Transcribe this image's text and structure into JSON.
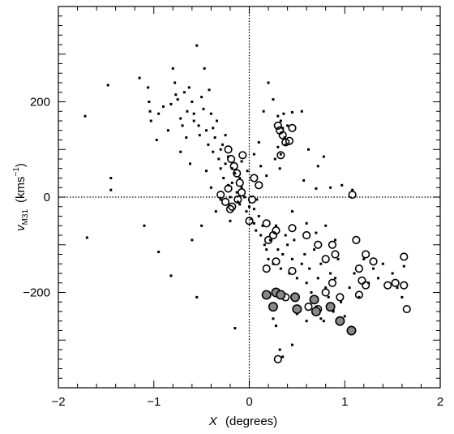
{
  "chart_data": {
    "type": "scatter",
    "xlabel": {
      "main": "X",
      "unit": "(degrees)"
    },
    "ylabel": {
      "main": "v",
      "sub": "M31",
      "unit_pre": "(kms",
      "unit_sup": "−1",
      "unit_post": ")"
    },
    "xlim": [
      -2,
      2
    ],
    "ylim": [
      -400,
      400
    ],
    "xticks": [
      -2,
      -1,
      0,
      1,
      2
    ],
    "xtick_labels": [
      "−2",
      "−1",
      "0",
      "1",
      "2"
    ],
    "yticks": [
      -200,
      0,
      200
    ],
    "ytick_labels": [
      "−200",
      "0",
      "200"
    ],
    "reference_lines": {
      "x": 0,
      "y": 0,
      "style": "dotted"
    },
    "series": [
      {
        "marker": "small-square",
        "points": [
          [
            -1.72,
            170
          ],
          [
            -1.48,
            235
          ],
          [
            -1.45,
            40
          ],
          [
            -1.45,
            15
          ],
          [
            -1.15,
            250
          ],
          [
            -1.06,
            230
          ],
          [
            -1.05,
            200
          ],
          [
            -1.04,
            180
          ],
          [
            -1.03,
            160
          ],
          [
            -0.97,
            120
          ],
          [
            -0.95,
            175
          ],
          [
            -0.9,
            190
          ],
          [
            -0.85,
            140
          ],
          [
            -0.82,
            195
          ],
          [
            -0.8,
            270
          ],
          [
            -0.78,
            240
          ],
          [
            -0.77,
            215
          ],
          [
            -0.75,
            205
          ],
          [
            -0.72,
            165
          ],
          [
            -0.7,
            150
          ],
          [
            -0.68,
            220
          ],
          [
            -0.66,
            125
          ],
          [
            -0.63,
            230
          ],
          [
            -0.6,
            200
          ],
          [
            -0.58,
            175
          ],
          [
            -0.55,
            318
          ],
          [
            -0.53,
            150
          ],
          [
            -0.5,
            210
          ],
          [
            -0.48,
            185
          ],
          [
            -0.47,
            270
          ],
          [
            -0.45,
            140
          ],
          [
            -0.42,
            225
          ],
          [
            -0.4,
            175
          ],
          [
            -0.38,
            95
          ],
          [
            -0.36,
            125
          ],
          [
            -0.34,
            160
          ],
          [
            -0.32,
            80
          ],
          [
            -0.3,
            60
          ],
          [
            -0.28,
            110
          ],
          [
            -0.27,
            40
          ],
          [
            -0.25,
            70
          ],
          [
            -0.22,
            25
          ],
          [
            -0.2,
            0
          ],
          [
            -0.18,
            30
          ],
          [
            -0.15,
            50
          ],
          [
            -0.13,
            10
          ],
          [
            -0.1,
            -15
          ],
          [
            -0.08,
            20
          ],
          [
            -0.05,
            0
          ],
          [
            -0.03,
            -30
          ],
          [
            0.0,
            -20
          ],
          [
            0.02,
            -45
          ],
          [
            0.05,
            -55
          ],
          [
            0.07,
            -70
          ],
          [
            0.1,
            -40
          ],
          [
            0.12,
            -80
          ],
          [
            0.14,
            -60
          ],
          [
            0.16,
            -100
          ],
          [
            0.18,
            -110
          ],
          [
            0.2,
            -130
          ],
          [
            0.22,
            -90
          ],
          [
            0.25,
            -140
          ],
          [
            0.28,
            -60
          ],
          [
            0.3,
            -110
          ],
          [
            0.33,
            -150
          ],
          [
            0.35,
            -120
          ],
          [
            0.38,
            -80
          ],
          [
            0.4,
            -100
          ],
          [
            0.42,
            -160
          ],
          [
            0.45,
            -130
          ],
          [
            0.47,
            -90
          ],
          [
            0.5,
            -170
          ],
          [
            0.55,
            -140
          ],
          [
            0.58,
            -120
          ],
          [
            0.6,
            -180
          ],
          [
            0.63,
            -150
          ],
          [
            0.65,
            -200
          ],
          [
            0.68,
            -110
          ],
          [
            0.7,
            -230
          ],
          [
            0.72,
            -170
          ],
          [
            0.75,
            -140
          ],
          [
            0.78,
            -260
          ],
          [
            0.8,
            -190
          ],
          [
            0.83,
            -210
          ],
          [
            0.85,
            -160
          ],
          [
            0.88,
            -240
          ],
          [
            0.9,
            -170
          ],
          [
            0.93,
            -130
          ],
          [
            0.96,
            -220
          ],
          [
            1.0,
            -250
          ],
          [
            1.05,
            -190
          ],
          [
            1.1,
            -160
          ],
          [
            1.15,
            -210
          ],
          [
            1.2,
            -130
          ],
          [
            1.25,
            -180
          ],
          [
            1.3,
            -150
          ],
          [
            1.35,
            -170
          ],
          [
            1.4,
            -140
          ],
          [
            1.5,
            -160
          ],
          [
            1.55,
            -190
          ],
          [
            1.6,
            -210
          ],
          [
            1.62,
            -145
          ],
          [
            0.3,
            170
          ],
          [
            0.33,
            160
          ],
          [
            0.35,
            145
          ],
          [
            0.37,
            125
          ],
          [
            0.3,
            105
          ],
          [
            0.33,
            90
          ],
          [
            0.36,
            175
          ],
          [
            0.38,
            110
          ],
          [
            0.4,
            150
          ],
          [
            0.45,
            178
          ],
          [
            0.55,
            180
          ],
          [
            0.32,
            60
          ],
          [
            0.27,
            80
          ],
          [
            0.62,
            100
          ],
          [
            0.72,
            65
          ],
          [
            0.78,
            85
          ],
          [
            0.57,
            35
          ],
          [
            0.7,
            18
          ],
          [
            0.85,
            20
          ],
          [
            0.97,
            25
          ],
          [
            1.08,
            15
          ],
          [
            0.45,
            -30
          ],
          [
            0.6,
            -55
          ],
          [
            0.7,
            -75
          ],
          [
            0.8,
            -60
          ],
          [
            0.9,
            -90
          ],
          [
            0.25,
            -255
          ],
          [
            0.28,
            -270
          ],
          [
            0.32,
            -320
          ],
          [
            0.35,
            -335
          ],
          [
            0.45,
            -310
          ],
          [
            0.5,
            -245
          ],
          [
            0.6,
            -260
          ],
          [
            0.75,
            -255
          ],
          [
            0.88,
            -235
          ],
          [
            -0.15,
            -275
          ],
          [
            -0.55,
            -210
          ],
          [
            -0.82,
            -165
          ],
          [
            -0.95,
            -115
          ],
          [
            -1.1,
            -60
          ],
          [
            -1.7,
            -85
          ],
          [
            -0.6,
            -90
          ],
          [
            -0.5,
            -60
          ],
          [
            -0.35,
            -30
          ],
          [
            -0.2,
            -50
          ],
          [
            0.15,
            180
          ],
          [
            0.2,
            240
          ],
          [
            0.25,
            205
          ],
          [
            0.1,
            115
          ],
          [
            0.05,
            90
          ],
          [
            0.12,
            65
          ],
          [
            0.18,
            45
          ],
          [
            -0.72,
            95
          ],
          [
            -0.62,
            70
          ],
          [
            -0.45,
            55
          ],
          [
            -0.4,
            20
          ],
          [
            -0.3,
            -5
          ],
          [
            -0.12,
            -10
          ],
          [
            0.05,
            -25
          ],
          [
            0.08,
            -5
          ],
          [
            -0.65,
            180
          ],
          [
            -0.58,
            160
          ],
          [
            -0.52,
            130
          ],
          [
            -0.43,
            110
          ],
          [
            -0.38,
            145
          ],
          [
            -0.3,
            100
          ],
          [
            -0.25,
            130
          ],
          [
            -0.22,
            85
          ],
          [
            -0.18,
            60
          ],
          [
            -0.1,
            40
          ],
          [
            -0.08,
            75
          ],
          [
            -0.02,
            55
          ]
        ]
      },
      {
        "marker": "open-circle",
        "points": [
          [
            -0.22,
            100
          ],
          [
            -0.19,
            80
          ],
          [
            -0.16,
            65
          ],
          [
            -0.13,
            50
          ],
          [
            -0.07,
            88
          ],
          [
            -0.3,
            5
          ],
          [
            -0.25,
            -10
          ],
          [
            -0.22,
            18
          ],
          [
            -0.18,
            -20
          ],
          [
            -0.12,
            -5
          ],
          [
            -0.1,
            30
          ],
          [
            -0.08,
            10
          ],
          [
            -0.2,
            -25
          ],
          [
            0.05,
            40
          ],
          [
            0.1,
            25
          ],
          [
            0.03,
            -5
          ],
          [
            0.0,
            -50
          ],
          [
            0.18,
            -55
          ],
          [
            0.2,
            -90
          ],
          [
            0.25,
            -80
          ],
          [
            0.28,
            -70
          ],
          [
            0.32,
            140
          ],
          [
            0.35,
            130
          ],
          [
            0.3,
            150
          ],
          [
            0.38,
            115
          ],
          [
            0.42,
            118
          ],
          [
            0.33,
            88
          ],
          [
            0.45,
            145
          ],
          [
            0.45,
            -65
          ],
          [
            0.6,
            -80
          ],
          [
            0.72,
            -100
          ],
          [
            0.8,
            -130
          ],
          [
            0.87,
            -100
          ],
          [
            0.9,
            -120
          ],
          [
            0.87,
            -180
          ],
          [
            0.28,
            -135
          ],
          [
            0.18,
            -150
          ],
          [
            0.45,
            -155
          ],
          [
            0.38,
            -210
          ],
          [
            0.5,
            -235
          ],
          [
            0.62,
            -230
          ],
          [
            0.72,
            -235
          ],
          [
            0.8,
            -200
          ],
          [
            0.95,
            -210
          ],
          [
            1.08,
            5
          ],
          [
            1.12,
            -90
          ],
          [
            1.15,
            -150
          ],
          [
            1.22,
            -120
          ],
          [
            1.18,
            -175
          ],
          [
            1.22,
            -185
          ],
          [
            1.3,
            -135
          ],
          [
            1.15,
            -205
          ],
          [
            1.45,
            -185
          ],
          [
            1.53,
            -180
          ],
          [
            1.62,
            -125
          ],
          [
            1.62,
            -185
          ],
          [
            1.65,
            -235
          ],
          [
            0.3,
            -340
          ]
        ]
      },
      {
        "marker": "filled-gray-circle",
        "points": [
          [
            0.18,
            -205
          ],
          [
            0.28,
            -200
          ],
          [
            0.33,
            -205
          ],
          [
            0.25,
            -230
          ],
          [
            0.48,
            -210
          ],
          [
            0.5,
            -235
          ],
          [
            0.68,
            -215
          ],
          [
            0.7,
            -240
          ],
          [
            0.85,
            -230
          ],
          [
            0.95,
            -260
          ],
          [
            1.07,
            -280
          ]
        ]
      }
    ]
  }
}
